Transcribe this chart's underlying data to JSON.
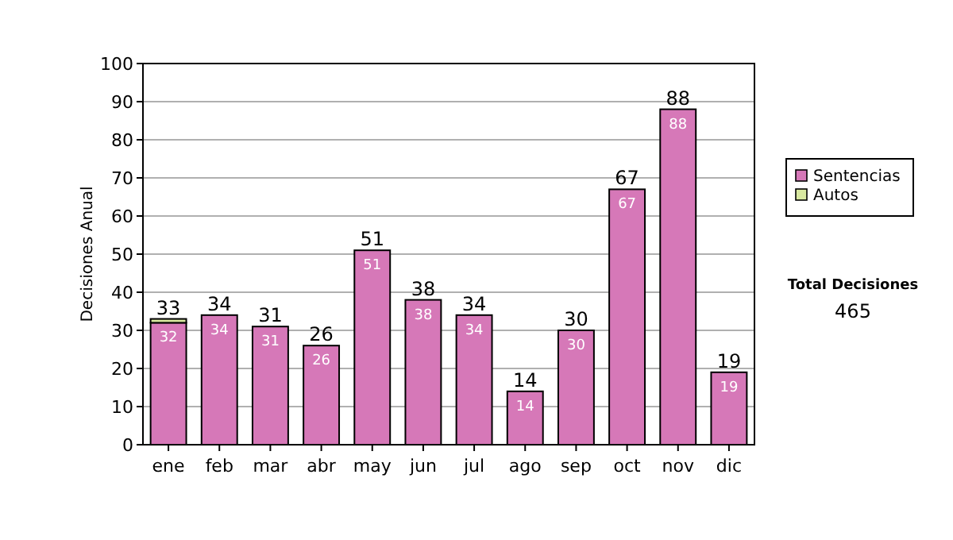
{
  "chart_data": {
    "type": "bar",
    "stacked": true,
    "ylabel": "Decisiones Anual",
    "categories": [
      "ene",
      "feb",
      "mar",
      "abr",
      "may",
      "jun",
      "jul",
      "ago",
      "sep",
      "oct",
      "nov",
      "dic"
    ],
    "series": [
      {
        "name": "Sentencias",
        "color": "#d678b8",
        "values": [
          32,
          34,
          31,
          26,
          51,
          38,
          34,
          14,
          30,
          67,
          88,
          19
        ],
        "value_labels": [
          "32",
          "34",
          "31",
          "26",
          "51",
          "38",
          "34",
          "14",
          "30",
          "67",
          "88",
          "19"
        ]
      },
      {
        "name": "Autos",
        "color": "#d8e8a0",
        "values": [
          1,
          0,
          0,
          0,
          0,
          0,
          0,
          0,
          0,
          0,
          0,
          0
        ]
      }
    ],
    "totals": [
      "33",
      "34",
      "31",
      "26",
      "51",
      "38",
      "34",
      "14",
      "30",
      "67",
      "88",
      "19"
    ],
    "ylim": [
      0,
      100
    ],
    "yticks": [
      0,
      10,
      20,
      30,
      40,
      50,
      60,
      70,
      80,
      90,
      100
    ],
    "grid": "y",
    "legend": "right",
    "annotations": [
      "Total Decisiones",
      "465"
    ]
  }
}
